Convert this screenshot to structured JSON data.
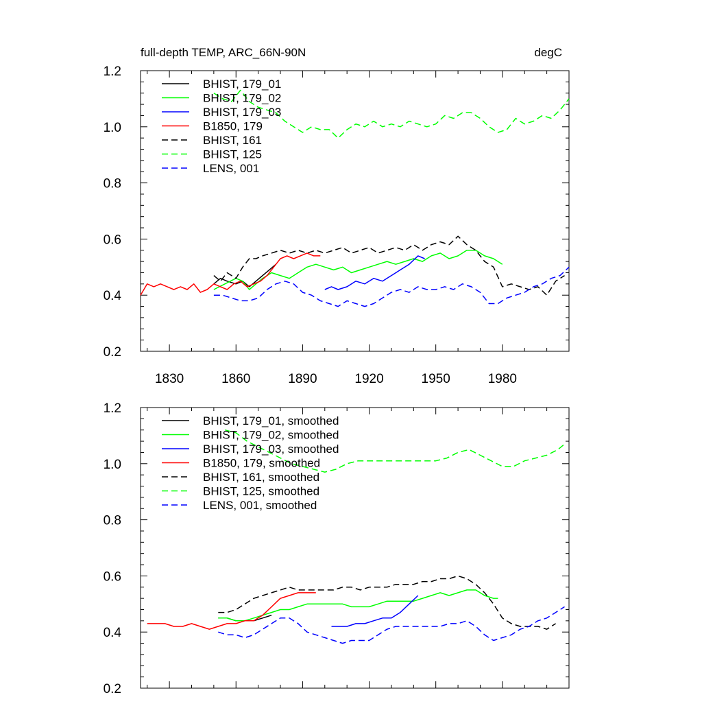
{
  "figure": {
    "title_left": "full-depth TEMP, ARC_66N-90N",
    "title_right": "degC"
  },
  "colors": {
    "black": "#000000",
    "green": "#00ff00",
    "blue": "#0000ff",
    "red": "#ff0000"
  },
  "chart_data": [
    {
      "type": "line",
      "xlim": [
        1817,
        2010
      ],
      "ylim": [
        0.2,
        1.2
      ],
      "xticks": [
        1830,
        1860,
        1890,
        1920,
        1950,
        1980
      ],
      "yticks": [
        0.2,
        0.4,
        0.6,
        0.8,
        1.0,
        1.2
      ],
      "ytick_labels": [
        "0.2",
        "0.4",
        "0.6",
        "0.8",
        "1.0",
        "1.2"
      ],
      "grid": false,
      "legend_position": "top-left",
      "series": [
        {
          "name": "BHIST, 179_01",
          "color": "#000000",
          "dash": false,
          "x": [
            1850,
            1853,
            1856,
            1860,
            1863,
            1866,
            1869,
            1872,
            1875,
            1878
          ],
          "y": [
            0.44,
            0.46,
            0.45,
            0.44,
            0.45,
            0.43,
            0.45,
            0.47,
            0.49,
            0.51
          ]
        },
        {
          "name": "BHIST, 179_02",
          "color": "#00ff00",
          "dash": false,
          "x": [
            1850,
            1855,
            1860,
            1863,
            1866,
            1869,
            1872,
            1876,
            1880,
            1884,
            1888,
            1892,
            1896,
            1900,
            1904,
            1908,
            1912,
            1916,
            1920,
            1924,
            1928,
            1932,
            1936,
            1940,
            1944,
            1948,
            1952,
            1956,
            1960,
            1964,
            1968,
            1972,
            1976,
            1980
          ],
          "y": [
            0.42,
            0.44,
            0.46,
            0.45,
            0.42,
            0.44,
            0.46,
            0.48,
            0.47,
            0.46,
            0.48,
            0.5,
            0.51,
            0.5,
            0.49,
            0.5,
            0.48,
            0.49,
            0.5,
            0.51,
            0.52,
            0.51,
            0.52,
            0.53,
            0.52,
            0.54,
            0.55,
            0.53,
            0.54,
            0.56,
            0.56,
            0.54,
            0.53,
            0.51
          ]
        },
        {
          "name": "BHIST, 179_03",
          "color": "#0000ff",
          "dash": false,
          "x": [
            1900,
            1903,
            1906,
            1910,
            1914,
            1918,
            1922,
            1926,
            1930,
            1934,
            1938,
            1942,
            1945
          ],
          "y": [
            0.42,
            0.43,
            0.42,
            0.43,
            0.45,
            0.44,
            0.46,
            0.45,
            0.47,
            0.49,
            0.51,
            0.54,
            0.53
          ]
        },
        {
          "name": "B1850, 179",
          "color": "#ff0000",
          "dash": false,
          "x": [
            1817,
            1820,
            1823,
            1826,
            1829,
            1832,
            1835,
            1838,
            1841,
            1844,
            1847,
            1850,
            1853,
            1856,
            1859,
            1862,
            1865,
            1868,
            1871,
            1874,
            1877,
            1880,
            1883,
            1886,
            1889,
            1892,
            1895,
            1898
          ],
          "y": [
            0.4,
            0.44,
            0.43,
            0.44,
            0.43,
            0.42,
            0.43,
            0.42,
            0.44,
            0.41,
            0.42,
            0.44,
            0.43,
            0.42,
            0.44,
            0.45,
            0.43,
            0.44,
            0.45,
            0.47,
            0.5,
            0.53,
            0.54,
            0.53,
            0.54,
            0.55,
            0.54,
            0.54
          ]
        },
        {
          "name": "BHIST, 161",
          "color": "#000000",
          "dash": true,
          "x": [
            1850,
            1853,
            1856,
            1860,
            1863,
            1866,
            1869,
            1872,
            1876,
            1880,
            1884,
            1888,
            1892,
            1896,
            1900,
            1904,
            1908,
            1912,
            1916,
            1920,
            1924,
            1928,
            1932,
            1936,
            1940,
            1944,
            1948,
            1952,
            1956,
            1960,
            1964,
            1968,
            1972,
            1976,
            1980,
            1984,
            1988,
            1992,
            1996,
            2000,
            2004,
            2008
          ],
          "y": [
            0.47,
            0.45,
            0.48,
            0.46,
            0.5,
            0.53,
            0.53,
            0.54,
            0.55,
            0.56,
            0.55,
            0.56,
            0.55,
            0.56,
            0.55,
            0.56,
            0.57,
            0.55,
            0.56,
            0.57,
            0.55,
            0.56,
            0.57,
            0.56,
            0.58,
            0.56,
            0.58,
            0.59,
            0.58,
            0.61,
            0.58,
            0.56,
            0.52,
            0.5,
            0.43,
            0.44,
            0.43,
            0.42,
            0.43,
            0.4,
            0.45,
            0.47
          ]
        },
        {
          "name": "BHIST, 125",
          "color": "#00ff00",
          "dash": true,
          "x": [
            1850,
            1854,
            1858,
            1862,
            1866,
            1870,
            1874,
            1878,
            1882,
            1886,
            1890,
            1894,
            1898,
            1902,
            1906,
            1910,
            1914,
            1918,
            1922,
            1926,
            1930,
            1934,
            1938,
            1942,
            1946,
            1950,
            1954,
            1958,
            1962,
            1966,
            1970,
            1974,
            1978,
            1982,
            1986,
            1990,
            1994,
            1998,
            2002,
            2006,
            2010
          ],
          "y": [
            1.12,
            1.1,
            1.09,
            1.13,
            1.09,
            1.07,
            1.06,
            1.05,
            1.02,
            1.0,
            0.98,
            1.0,
            0.99,
            0.99,
            0.96,
            0.99,
            1.01,
            1.0,
            1.02,
            1.0,
            1.01,
            1.0,
            1.02,
            1.01,
            1.0,
            1.01,
            1.04,
            1.03,
            1.05,
            1.05,
            1.03,
            1.0,
            0.98,
            0.99,
            1.03,
            1.01,
            1.02,
            1.04,
            1.03,
            1.06,
            1.1
          ]
        },
        {
          "name": "LENS, 001",
          "color": "#0000ff",
          "dash": true,
          "x": [
            1850,
            1854,
            1858,
            1862,
            1866,
            1870,
            1874,
            1878,
            1882,
            1886,
            1890,
            1894,
            1898,
            1902,
            1906,
            1910,
            1914,
            1918,
            1922,
            1926,
            1930,
            1934,
            1938,
            1942,
            1946,
            1950,
            1954,
            1958,
            1962,
            1966,
            1970,
            1974,
            1978,
            1982,
            1986,
            1990,
            1994,
            1998,
            2002,
            2006,
            2010
          ],
          "y": [
            0.4,
            0.4,
            0.39,
            0.38,
            0.38,
            0.39,
            0.42,
            0.44,
            0.45,
            0.44,
            0.41,
            0.4,
            0.38,
            0.37,
            0.36,
            0.38,
            0.37,
            0.36,
            0.37,
            0.39,
            0.41,
            0.42,
            0.41,
            0.43,
            0.42,
            0.42,
            0.43,
            0.42,
            0.44,
            0.43,
            0.41,
            0.37,
            0.37,
            0.39,
            0.4,
            0.41,
            0.43,
            0.44,
            0.46,
            0.47,
            0.5
          ]
        }
      ]
    },
    {
      "type": "line",
      "xlim": [
        1817,
        2010
      ],
      "ylim": [
        0.2,
        1.2
      ],
      "xticks": [
        1830,
        1860,
        1890,
        1920,
        1950,
        1980
      ],
      "yticks": [
        0.2,
        0.4,
        0.6,
        0.8,
        1.0,
        1.2
      ],
      "ytick_labels": [
        "0.2",
        "0.4",
        "0.6",
        "0.8",
        "1.0",
        "1.2"
      ],
      "grid": false,
      "legend_position": "top-left",
      "series": [
        {
          "name": "BHIST, 179_01, smoothed",
          "color": "#000000",
          "dash": false,
          "x": [
            1852,
            1856,
            1860,
            1864,
            1868,
            1872,
            1876
          ],
          "y": [
            0.45,
            0.45,
            0.44,
            0.44,
            0.44,
            0.45,
            0.46
          ]
        },
        {
          "name": "BHIST, 179_02, smoothed",
          "color": "#00ff00",
          "dash": false,
          "x": [
            1852,
            1856,
            1860,
            1864,
            1868,
            1872,
            1876,
            1880,
            1884,
            1888,
            1892,
            1896,
            1900,
            1904,
            1908,
            1912,
            1916,
            1920,
            1924,
            1928,
            1932,
            1936,
            1940,
            1944,
            1948,
            1952,
            1956,
            1960,
            1964,
            1968,
            1972,
            1976,
            1978
          ],
          "y": [
            0.45,
            0.45,
            0.44,
            0.44,
            0.45,
            0.46,
            0.47,
            0.48,
            0.48,
            0.49,
            0.5,
            0.5,
            0.5,
            0.5,
            0.5,
            0.49,
            0.49,
            0.49,
            0.5,
            0.51,
            0.51,
            0.51,
            0.51,
            0.52,
            0.53,
            0.54,
            0.53,
            0.54,
            0.55,
            0.55,
            0.53,
            0.52,
            0.52
          ]
        },
        {
          "name": "BHIST, 179_03, smoothed",
          "color": "#0000ff",
          "dash": false,
          "x": [
            1903,
            1906,
            1910,
            1914,
            1918,
            1922,
            1926,
            1930,
            1934,
            1938,
            1942
          ],
          "y": [
            0.42,
            0.42,
            0.42,
            0.43,
            0.43,
            0.44,
            0.45,
            0.45,
            0.47,
            0.5,
            0.53
          ]
        },
        {
          "name": "B1850, 179, smoothed",
          "color": "#ff0000",
          "dash": false,
          "x": [
            1820,
            1824,
            1828,
            1832,
            1836,
            1840,
            1844,
            1848,
            1852,
            1856,
            1860,
            1864,
            1868,
            1872,
            1876,
            1880,
            1884,
            1888,
            1892,
            1896
          ],
          "y": [
            0.43,
            0.43,
            0.43,
            0.42,
            0.42,
            0.43,
            0.42,
            0.41,
            0.42,
            0.43,
            0.43,
            0.44,
            0.44,
            0.46,
            0.49,
            0.52,
            0.53,
            0.54,
            0.54,
            0.54
          ]
        },
        {
          "name": "BHIST, 161, smoothed",
          "color": "#000000",
          "dash": true,
          "x": [
            1852,
            1856,
            1860,
            1864,
            1868,
            1872,
            1876,
            1880,
            1884,
            1888,
            1892,
            1896,
            1900,
            1904,
            1908,
            1912,
            1916,
            1920,
            1924,
            1928,
            1932,
            1936,
            1940,
            1944,
            1948,
            1952,
            1956,
            1960,
            1964,
            1968,
            1972,
            1976,
            1980,
            1984,
            1988,
            1992,
            1996,
            2000,
            2004
          ],
          "y": [
            0.47,
            0.47,
            0.48,
            0.5,
            0.52,
            0.53,
            0.54,
            0.55,
            0.56,
            0.55,
            0.55,
            0.55,
            0.55,
            0.55,
            0.56,
            0.56,
            0.55,
            0.56,
            0.56,
            0.56,
            0.57,
            0.57,
            0.57,
            0.58,
            0.58,
            0.59,
            0.59,
            0.6,
            0.59,
            0.57,
            0.54,
            0.5,
            0.45,
            0.43,
            0.42,
            0.42,
            0.42,
            0.41,
            0.43
          ]
        },
        {
          "name": "BHIST, 125, smoothed",
          "color": "#00ff00",
          "dash": true,
          "x": [
            1855,
            1860,
            1865,
            1870,
            1875,
            1880,
            1885,
            1890,
            1895,
            1900,
            1905,
            1910,
            1915,
            1920,
            1925,
            1930,
            1935,
            1940,
            1945,
            1950,
            1955,
            1960,
            1965,
            1970,
            1975,
            1980,
            1985,
            1990,
            1995,
            2000,
            2005,
            2008
          ],
          "y": [
            1.12,
            1.11,
            1.08,
            1.06,
            1.04,
            1.02,
            1.0,
            0.99,
            0.98,
            0.97,
            0.98,
            1.0,
            1.01,
            1.01,
            1.01,
            1.01,
            1.01,
            1.01,
            1.01,
            1.01,
            1.02,
            1.04,
            1.05,
            1.03,
            1.01,
            0.99,
            0.99,
            1.01,
            1.02,
            1.03,
            1.05,
            1.07
          ]
        },
        {
          "name": "LENS, 001, smoothed",
          "color": "#0000ff",
          "dash": true,
          "x": [
            1852,
            1856,
            1860,
            1864,
            1868,
            1872,
            1876,
            1880,
            1884,
            1888,
            1892,
            1896,
            1900,
            1904,
            1908,
            1912,
            1916,
            1920,
            1924,
            1928,
            1932,
            1936,
            1940,
            1944,
            1948,
            1952,
            1956,
            1960,
            1964,
            1968,
            1972,
            1976,
            1980,
            1984,
            1988,
            1992,
            1996,
            2000,
            2004,
            2008
          ],
          "y": [
            0.4,
            0.39,
            0.39,
            0.38,
            0.39,
            0.41,
            0.43,
            0.45,
            0.45,
            0.43,
            0.4,
            0.39,
            0.38,
            0.37,
            0.36,
            0.37,
            0.37,
            0.37,
            0.39,
            0.41,
            0.42,
            0.42,
            0.42,
            0.42,
            0.42,
            0.42,
            0.43,
            0.43,
            0.44,
            0.42,
            0.39,
            0.37,
            0.38,
            0.39,
            0.41,
            0.42,
            0.44,
            0.45,
            0.47,
            0.49
          ]
        }
      ]
    }
  ]
}
